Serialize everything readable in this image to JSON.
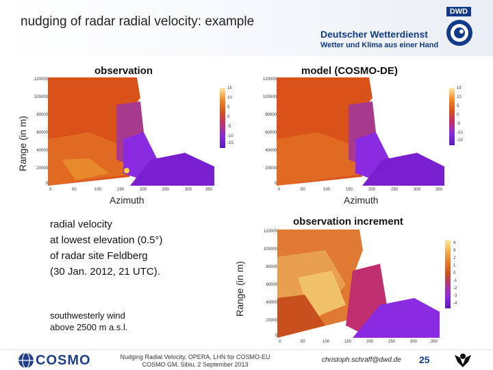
{
  "header": {
    "title": "nudging of radar radial velocity: example",
    "dwd_badge": "DWD",
    "brand_name": "Deutscher Wetterdienst",
    "brand_tagline": "Wetter und Klima aus einer Hand"
  },
  "observation_panel": {
    "label": "observation",
    "y_axis_label": "Range  (in m)",
    "x_axis_label": "Azimuth",
    "y_ticks": [
      "120000",
      "100000",
      "80000",
      "60000",
      "40000",
      "20000",
      "0"
    ],
    "x_ticks": [
      "0",
      "50",
      "100",
      "150",
      "200",
      "250",
      "300",
      "350"
    ],
    "colorbar_ticks": [
      "15",
      "10",
      "5",
      "0",
      "-5",
      "-10",
      "-15"
    ]
  },
  "model_panel": {
    "label": "model  (COSMO-DE)",
    "x_axis_label": "Azimuth",
    "y_ticks": [
      "120000",
      "100000",
      "80000",
      "60000",
      "40000",
      "20000",
      "0"
    ],
    "x_ticks": [
      "0",
      "50",
      "100",
      "150",
      "200",
      "250",
      "300",
      "350"
    ],
    "colorbar_ticks": [
      "15",
      "10",
      "5",
      "0",
      "-5",
      "-10",
      "-15"
    ]
  },
  "increment_panel": {
    "label": "observation increment",
    "y_axis_label": "Range  (in m)",
    "y_ticks": [
      "120000",
      "100000",
      "80000",
      "60000",
      "40000",
      "20000",
      "0"
    ],
    "x_ticks": [
      "0",
      "50",
      "100",
      "150",
      "200",
      "250",
      "300",
      "350"
    ],
    "colorbar_ticks": [
      "4",
      "3",
      "2",
      "1",
      "0",
      "-1",
      "-2",
      "-3",
      "-4"
    ]
  },
  "description": {
    "line1": "radial velocity",
    "line2": "at lowest elevation (0.5°)",
    "line3": "of radar site Feldberg",
    "line4": "(30 Jan. 2012,  21 UTC).",
    "wind_line1": "southwesterly wind",
    "wind_line2": "above 2500 m a.s.l."
  },
  "footer": {
    "cosmo_logo": "COSMO",
    "center_line1": "Nudging Radial Velocity, OPERA, LHN for COSMO-EU",
    "center_line2": "COSMO GM, Sibiu, 2 September 2013",
    "email": "christoph.schraff@dwd.de",
    "page_number": "25"
  },
  "colors": {
    "brand_blue": "#123a8a",
    "plot_orange": "#d8521a",
    "plot_purple": "#8a2be2"
  }
}
